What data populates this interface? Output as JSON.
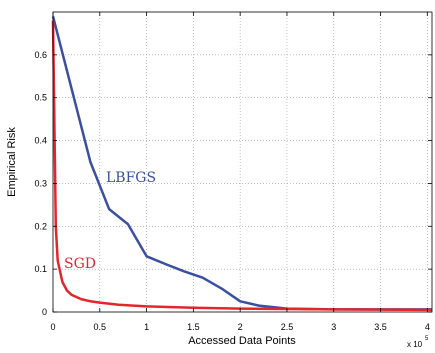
{
  "chart_data": {
    "type": "line",
    "xlabel": "Accessed Data Points",
    "ylabel": "Empirical Risk",
    "x_multiplier_label": "x 10",
    "x_multiplier_exponent": "5",
    "xlim": [
      0,
      4.05
    ],
    "ylim": [
      0,
      0.7
    ],
    "x_ticks": [
      0,
      0.5,
      1,
      1.5,
      2,
      2.5,
      3,
      3.5,
      4
    ],
    "x_tick_labels": [
      "0",
      "0.5",
      "1",
      "1.5",
      "2",
      "2.5",
      "3",
      "3.5",
      "4"
    ],
    "y_ticks": [
      0,
      0.1,
      0.2,
      0.3,
      0.4,
      0.5,
      0.6
    ],
    "y_tick_labels": [
      "0",
      "0.1",
      "0.2",
      "0.3",
      "0.4",
      "0.5",
      "0.6"
    ],
    "grid": true,
    "series": [
      {
        "name": "LBFGS",
        "color": "#3a4fa0",
        "x": [
          0,
          0.4,
          0.6,
          0.8,
          1.0,
          1.2,
          1.4,
          1.6,
          1.8,
          2.0,
          2.2,
          2.5,
          3.0,
          3.5,
          4.05
        ],
        "y": [
          0.69,
          0.35,
          0.24,
          0.205,
          0.13,
          0.112,
          0.095,
          0.08,
          0.055,
          0.025,
          0.015,
          0.008,
          0.006,
          0.006,
          0.006
        ]
      },
      {
        "name": "SGD",
        "color": "#e3262c",
        "x": [
          0,
          0.03,
          0.05,
          0.1,
          0.15,
          0.2,
          0.3,
          0.4,
          0.5,
          0.7,
          1.0,
          1.5,
          2.0,
          3.0,
          4.05
        ],
        "y": [
          0.68,
          0.2,
          0.12,
          0.07,
          0.05,
          0.04,
          0.03,
          0.025,
          0.022,
          0.017,
          0.013,
          0.01,
          0.008,
          0.006,
          0.005
        ]
      }
    ]
  }
}
